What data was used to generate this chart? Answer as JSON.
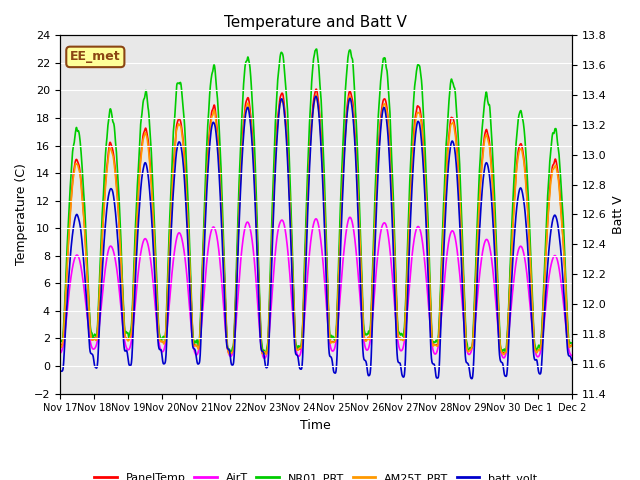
{
  "title": "Temperature and Batt V",
  "xlabel": "Time",
  "ylabel_left": "Temperature (C)",
  "ylabel_right": "Batt V",
  "ylim_left": [
    -2,
    24
  ],
  "ylim_right": [
    11.4,
    13.8
  ],
  "yticks_left": [
    -2,
    0,
    2,
    4,
    6,
    8,
    10,
    12,
    14,
    16,
    18,
    20,
    22,
    24
  ],
  "yticks_right": [
    11.4,
    11.6,
    11.8,
    12.0,
    12.2,
    12.4,
    12.6,
    12.8,
    13.0,
    13.2,
    13.4,
    13.6,
    13.8
  ],
  "annotation_text": "EE_met",
  "annotation_color": "#8B4513",
  "annotation_bg": "#FFFF99",
  "bg_color": "#E8E8E8",
  "x_tick_labels": [
    "Nov 17",
    "Nov 18",
    "Nov 19",
    "Nov 20",
    "Nov 21",
    "Nov 22",
    "Nov 23",
    "Nov 24",
    "Nov 25",
    "Nov 26",
    "Nov 27",
    "Nov 28",
    "Nov 29",
    "Nov 30",
    "Dec 1",
    "Dec 2"
  ],
  "legend_entries": [
    "PanelTemp",
    "AirT",
    "NR01_PRT",
    "AM25T_PRT",
    "batt_volt"
  ],
  "legend_colors": [
    "#FF0000",
    "#FF00FF",
    "#00CC00",
    "#FF9900",
    "#0000CC"
  ],
  "line_width": 1.2,
  "grid_color": "#FFFFFF",
  "n_days": 15,
  "points_per_day": 144
}
